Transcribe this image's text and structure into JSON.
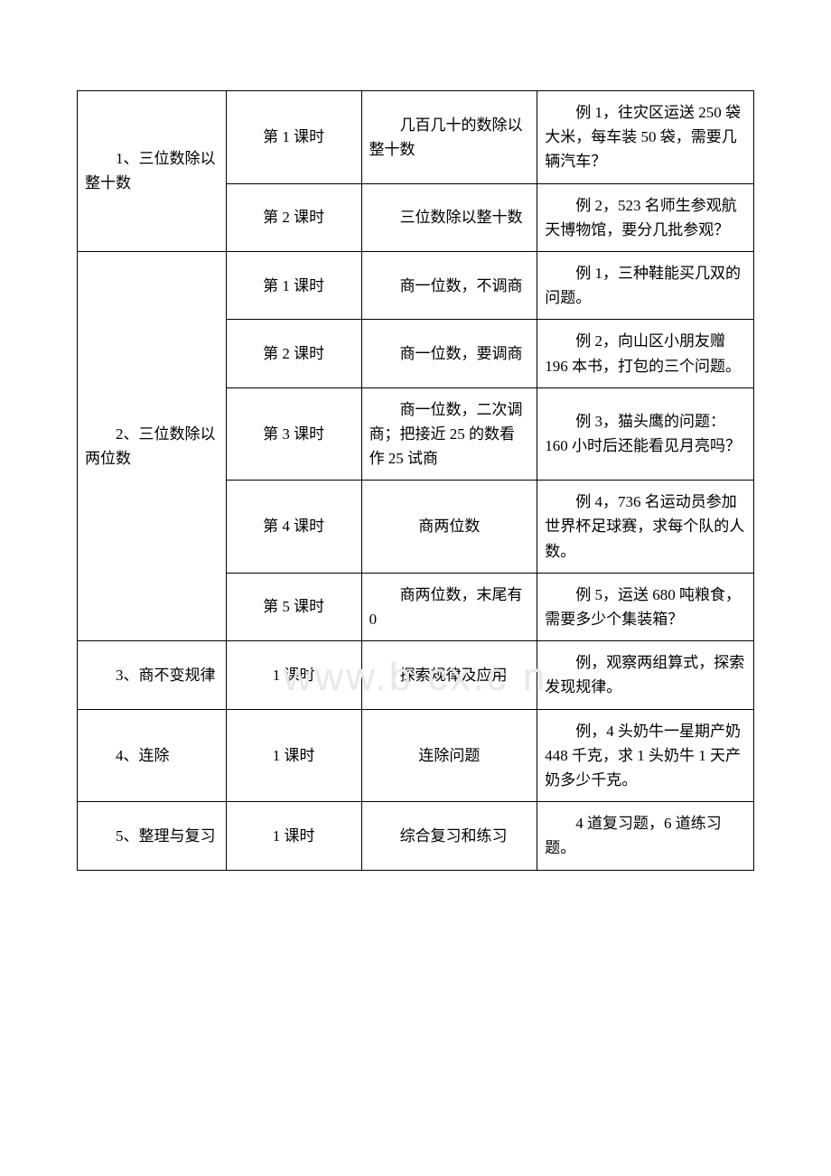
{
  "watermark": "www.b    cx.c  n",
  "rows": [
    {
      "section": "1、三位数除以整十数",
      "period": "第 1 课时",
      "topic": "几百几十的数除以整十数",
      "example": "例 1，往灾区运送 250 袋大米，每车装 50 袋，需要几辆汽车？"
    },
    {
      "period": "第 2 课时",
      "topic": "三位数除以整十数",
      "example": "例 2，523 名师生参观航天博物馆，要分几批参观？"
    },
    {
      "section": "2、三位数除以两位数",
      "period": "第 1 课时",
      "topic": "商一位数，不调商",
      "example": "例 1，三种鞋能买几双的问题。"
    },
    {
      "period": "第 2 课时",
      "topic": "商一位数，要调商",
      "example": "例 2，向山区小朋友赠 196 本书，打包的三个问题。"
    },
    {
      "period": "第 3 课时",
      "topic": "商一位数，二次调商；把接近 25 的数看作 25 试商",
      "example": "例 3，猫头鹰的问题：160 小时后还能看见月亮吗？"
    },
    {
      "period": "第 4 课时",
      "topic": "商两位数",
      "example": "例 4，736 名运动员参加世界杯足球赛，求每个队的人数。"
    },
    {
      "period": "第 5 课时",
      "topic": "商两位数，末尾有 0",
      "example": "例 5，运送 680 吨粮食，需要多少个集装箱？"
    },
    {
      "section": "3、商不变规律",
      "period": "1 课时",
      "topic": "探索规律及应用",
      "example": "例，观察两组算式，探索发现规律。"
    },
    {
      "section": "4、连除",
      "period": "1 课时",
      "topic": "连除问题",
      "example": "例，4 头奶牛一星期产奶 448 千克，求 1 头奶牛 1 天产奶多少千克。"
    },
    {
      "section": "5、整理与复习",
      "period": "1 课时",
      "topic": "综合复习和练习",
      "example": "4 道复习题，6 道练习题。"
    }
  ]
}
